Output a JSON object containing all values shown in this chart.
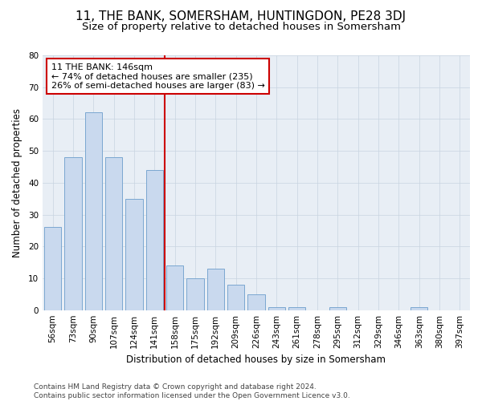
{
  "title": "11, THE BANK, SOMERSHAM, HUNTINGDON, PE28 3DJ",
  "subtitle": "Size of property relative to detached houses in Somersham",
  "xlabel": "Distribution of detached houses by size in Somersham",
  "ylabel": "Number of detached properties",
  "categories": [
    "56sqm",
    "73sqm",
    "90sqm",
    "107sqm",
    "124sqm",
    "141sqm",
    "158sqm",
    "175sqm",
    "192sqm",
    "209sqm",
    "226sqm",
    "243sqm",
    "261sqm",
    "278sqm",
    "295sqm",
    "312sqm",
    "329sqm",
    "346sqm",
    "363sqm",
    "380sqm",
    "397sqm"
  ],
  "values": [
    26,
    48,
    62,
    48,
    35,
    44,
    14,
    10,
    13,
    8,
    5,
    1,
    1,
    0,
    1,
    0,
    0,
    0,
    1,
    0,
    0
  ],
  "bar_color": "#c9d9ee",
  "bar_edge_color": "#7ba7d0",
  "vline_x": 5.5,
  "vline_color": "#cc0000",
  "annotation_text": "11 THE BANK: 146sqm\n← 74% of detached houses are smaller (235)\n26% of semi-detached houses are larger (83) →",
  "annotation_box_color": "#ffffff",
  "annotation_box_edge": "#cc0000",
  "ylim": [
    0,
    80
  ],
  "yticks": [
    0,
    10,
    20,
    30,
    40,
    50,
    60,
    70,
    80
  ],
  "grid_color": "#c8d4e0",
  "bg_color": "#e8eef5",
  "footer": "Contains HM Land Registry data © Crown copyright and database right 2024.\nContains public sector information licensed under the Open Government Licence v3.0.",
  "title_fontsize": 11,
  "subtitle_fontsize": 9.5,
  "label_fontsize": 8.5,
  "tick_fontsize": 7.5,
  "annotation_fontsize": 8,
  "footer_fontsize": 6.5
}
